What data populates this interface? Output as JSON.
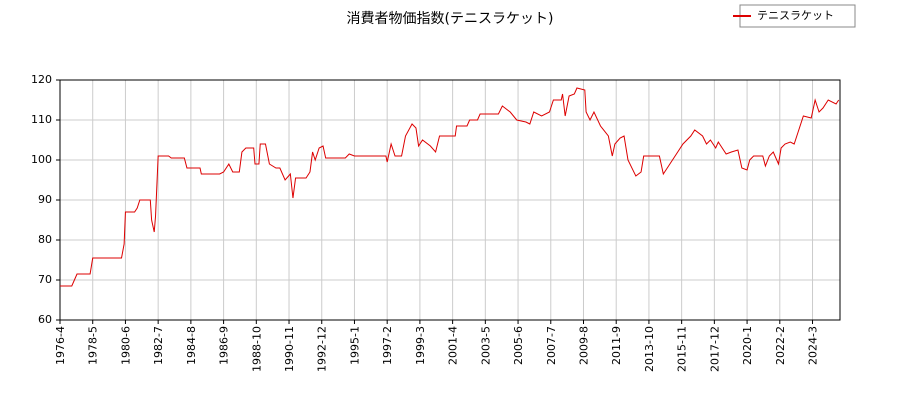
{
  "chart_data": {
    "type": "line",
    "title": "消費者物価指数(テニスラケット)",
    "x": [
      "1976-4",
      "1977-1",
      "1977-3",
      "1977-5",
      "1978-3",
      "1978-5",
      "1980-3",
      "1980-5",
      "1980-6",
      "1981-1",
      "1981-3",
      "1981-5",
      "1982-1",
      "1982-2",
      "1982-4",
      "1982-5",
      "1982-7",
      "1983-3",
      "1983-5",
      "1984-3",
      "1984-5",
      "1985-3",
      "1985-4",
      "1986-6",
      "1986-9",
      "1987-1",
      "1987-4",
      "1987-9",
      "1987-11",
      "1988-2",
      "1988-8",
      "1988-9",
      "1988-12",
      "1989-1",
      "1989-5",
      "1989-8",
      "1990-1",
      "1990-4",
      "1990-8",
      "1990-12",
      "1991-2",
      "1991-4",
      "1991-12",
      "1992-3",
      "1992-5",
      "1992-7",
      "1992-10",
      "1993-1",
      "1993-3",
      "1994-6",
      "1994-9",
      "1995-1",
      "1997-1",
      "1997-2",
      "1997-5",
      "1997-8",
      "1998-1",
      "1998-4",
      "1998-9",
      "1998-12",
      "1999-2",
      "1999-5",
      "1999-11",
      "2000-3",
      "2000-6",
      "2001-6",
      "2001-7",
      "2002-3",
      "2002-5",
      "2002-11",
      "2003-1",
      "2004-3",
      "2004-6",
      "2004-12",
      "2005-5",
      "2005-12",
      "2006-3",
      "2006-6",
      "2006-12",
      "2007-6",
      "2007-9",
      "2008-3",
      "2008-4",
      "2008-6",
      "2008-9",
      "2009-1",
      "2009-3",
      "2009-9",
      "2009-10",
      "2010-1",
      "2010-4",
      "2010-9",
      "2011-3",
      "2011-6",
      "2011-8",
      "2011-12",
      "2012-3",
      "2012-6",
      "2012-12",
      "2013-4",
      "2013-6",
      "2014-6",
      "2014-9",
      "2015-1",
      "2015-8",
      "2015-12",
      "2016-6",
      "2016-9",
      "2017-3",
      "2017-6",
      "2017-9",
      "2018-1",
      "2018-3",
      "2018-9",
      "2019-1",
      "2019-6",
      "2019-9",
      "2020-1",
      "2020-3",
      "2020-6",
      "2021-1",
      "2021-3",
      "2021-6",
      "2021-9",
      "2022-1",
      "2022-3",
      "2022-6",
      "2022-10",
      "2023-1",
      "2023-4",
      "2023-8",
      "2024-2",
      "2024-5",
      "2024-8",
      "2024-11",
      "2025-3",
      "2025-9",
      "2025-11"
    ],
    "series": [
      {
        "name": "テニスラケット",
        "color": "#dd0000",
        "values": [
          68.5,
          68.5,
          70,
          71.5,
          71.5,
          75.5,
          75.5,
          79,
          87,
          87,
          88,
          90,
          90,
          85,
          82,
          86,
          101,
          101,
          100.5,
          100.5,
          98,
          98,
          96.5,
          96.5,
          97,
          99,
          97,
          97,
          102,
          103,
          103,
          99,
          99,
          104,
          104,
          99,
          98,
          98,
          95,
          96.5,
          90.5,
          95.5,
          95.5,
          97,
          102,
          100,
          103,
          103.5,
          100.5,
          100.5,
          101.5,
          101,
          101,
          99.5,
          104,
          101,
          101,
          106,
          109,
          108,
          103.5,
          105,
          103.5,
          102,
          106,
          106,
          108.5,
          108.5,
          110,
          110,
          111.5,
          111.5,
          113.5,
          112,
          110,
          109.5,
          109,
          112,
          111,
          112,
          115,
          115,
          116.5,
          111,
          116,
          116.5,
          118,
          117.5,
          112,
          110,
          112,
          108.5,
          106,
          101,
          104,
          105.5,
          106,
          100,
          96,
          97,
          101,
          101,
          96.5,
          98.5,
          102,
          104,
          106,
          107.5,
          106,
          104,
          105,
          103,
          104.5,
          101.5,
          102,
          102.5,
          98,
          97.5,
          100,
          101,
          101,
          98.5,
          101,
          102,
          99,
          103,
          104,
          104.5,
          104,
          107,
          111,
          110.5,
          115,
          112,
          113,
          115,
          114,
          115
        ]
      }
    ],
    "xlim": [
      "1976-4",
      "2025-12"
    ],
    "xticks": [
      "1976-4",
      "1978-5",
      "1980-6",
      "1982-7",
      "1984-8",
      "1986-9",
      "1988-10",
      "1990-11",
      "1992-12",
      "1995-1",
      "1997-2",
      "1999-3",
      "2001-4",
      "2003-5",
      "2005-6",
      "2007-7",
      "2009-8",
      "2011-9",
      "2013-10",
      "2015-11",
      "2017-12",
      "2020-1",
      "2022-2",
      "2024-3"
    ],
    "ylim": [
      60,
      120
    ],
    "yticks": [
      60,
      70,
      80,
      90,
      100,
      110,
      120
    ],
    "grid": true,
    "legend": "top-right"
  }
}
